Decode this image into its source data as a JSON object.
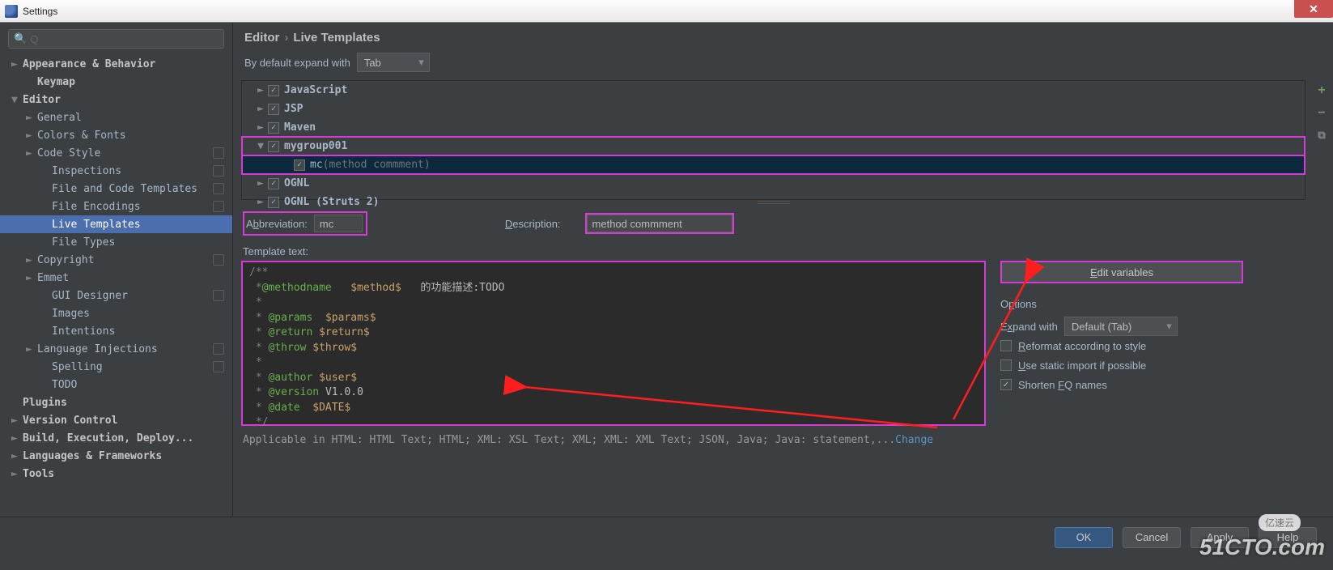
{
  "window": {
    "title": "Settings",
    "close_glyph": "✕"
  },
  "colors": {
    "highlight_pink": "#d63bd6",
    "selection_blue": "#4b6eaf",
    "row_selected": "#0d293e",
    "arrow_red": "#ff1e1e",
    "add_green": "#6e9b5f"
  },
  "sidebar": {
    "search_placeholder": "Q",
    "items": [
      {
        "label": "Appearance & Behavior",
        "bold": true,
        "chevron": "►"
      },
      {
        "label": "Keymap",
        "bold": true,
        "indent": 1
      },
      {
        "label": "Editor",
        "bold": true,
        "chevron": "▼"
      },
      {
        "label": "General",
        "chevron": "►",
        "indent": 1
      },
      {
        "label": "Colors & Fonts",
        "chevron": "►",
        "indent": 1
      },
      {
        "label": "Code Style",
        "chevron": "►",
        "indent": 1,
        "cfg": true
      },
      {
        "label": "Inspections",
        "indent": 2,
        "cfg": true
      },
      {
        "label": "File and Code Templates",
        "indent": 2,
        "cfg": true
      },
      {
        "label": "File Encodings",
        "indent": 2,
        "cfg": true
      },
      {
        "label": "Live Templates",
        "indent": 2,
        "selected": true
      },
      {
        "label": "File Types",
        "indent": 2
      },
      {
        "label": "Copyright",
        "chevron": "►",
        "indent": 1,
        "cfg": true
      },
      {
        "label": "Emmet",
        "chevron": "►",
        "indent": 1
      },
      {
        "label": "GUI Designer",
        "indent": 2,
        "cfg": true
      },
      {
        "label": "Images",
        "indent": 2
      },
      {
        "label": "Intentions",
        "indent": 2
      },
      {
        "label": "Language Injections",
        "chevron": "►",
        "indent": 1,
        "cfg": true
      },
      {
        "label": "Spelling",
        "indent": 2,
        "cfg": true
      },
      {
        "label": "TODO",
        "indent": 2
      },
      {
        "label": "Plugins",
        "bold": true
      },
      {
        "label": "Version Control",
        "bold": true,
        "chevron": "►"
      },
      {
        "label": "Build, Execution, Deploy...",
        "bold": true,
        "chevron": "►"
      },
      {
        "label": "Languages & Frameworks",
        "bold": true,
        "chevron": "►"
      },
      {
        "label": "Tools",
        "bold": true,
        "chevron": "►"
      }
    ]
  },
  "breadcrumb": {
    "a": "Editor",
    "b": "Live Templates"
  },
  "expand": {
    "label": "By default expand with",
    "value": "Tab"
  },
  "tool_icons": {
    "add": "+",
    "remove": "−",
    "copy": "⧉"
  },
  "groups": [
    {
      "label": "JavaScript",
      "arrow": "►",
      "checked": true
    },
    {
      "label": "JSP",
      "arrow": "►",
      "checked": true
    },
    {
      "label": "Maven",
      "arrow": "►",
      "checked": true
    },
    {
      "label": "mygroup001",
      "arrow": "▼",
      "checked": true,
      "pink": true
    },
    {
      "label": "mc",
      "hint": "(method commment)",
      "checked": true,
      "child": true,
      "selected": true,
      "pink": true
    },
    {
      "label": "OGNL",
      "arrow": "►",
      "checked": true
    },
    {
      "label": "OGNL (Struts 2)",
      "arrow": "►",
      "checked": true
    }
  ],
  "abbr": {
    "label_pre": "A",
    "label_ul": "b",
    "label_post": "breviation:",
    "value": "mc"
  },
  "desc": {
    "label_pre": "",
    "label_ul": "D",
    "label_post": "escription:",
    "value": "method commment"
  },
  "template_label_pre": "",
  "template_label_ul": "T",
  "template_label_post": "emplate text:",
  "template_lines": [
    {
      "t": "cm",
      "v": "/**"
    },
    {
      "t": "mix",
      "parts": [
        {
          "t": "cm",
          "v": " *"
        },
        {
          "t": "kw",
          "v": "@methodname"
        },
        {
          "t": "cm",
          "v": "   "
        },
        {
          "t": "var",
          "v": "$method$"
        },
        {
          "t": "cm",
          "v": "   "
        },
        {
          "t": "cn",
          "v": "的功能描述:TODO"
        }
      ]
    },
    {
      "t": "cm",
      "v": " *"
    },
    {
      "t": "mix",
      "parts": [
        {
          "t": "cm",
          "v": " * "
        },
        {
          "t": "kw",
          "v": "@params"
        },
        {
          "t": "cm",
          "v": "  "
        },
        {
          "t": "var",
          "v": "$params$"
        }
      ]
    },
    {
      "t": "mix",
      "parts": [
        {
          "t": "cm",
          "v": " * "
        },
        {
          "t": "kw",
          "v": "@return"
        },
        {
          "t": "cm",
          "v": " "
        },
        {
          "t": "var",
          "v": "$return$"
        }
      ]
    },
    {
      "t": "mix",
      "parts": [
        {
          "t": "cm",
          "v": " * "
        },
        {
          "t": "kw",
          "v": "@throw"
        },
        {
          "t": "cm",
          "v": " "
        },
        {
          "t": "var",
          "v": "$throw$"
        }
      ]
    },
    {
      "t": "cm",
      "v": " *"
    },
    {
      "t": "mix",
      "parts": [
        {
          "t": "cm",
          "v": " * "
        },
        {
          "t": "kw",
          "v": "@author"
        },
        {
          "t": "cm",
          "v": " "
        },
        {
          "t": "var",
          "v": "$user$"
        }
      ]
    },
    {
      "t": "mix",
      "parts": [
        {
          "t": "cm",
          "v": " * "
        },
        {
          "t": "kw",
          "v": "@version"
        },
        {
          "t": "cm",
          "v": " "
        },
        {
          "t": "cn",
          "v": "V1.0.0"
        }
      ]
    },
    {
      "t": "mix",
      "parts": [
        {
          "t": "cm",
          "v": " * "
        },
        {
          "t": "kw",
          "v": "@date"
        },
        {
          "t": "cm",
          "v": "  "
        },
        {
          "t": "var",
          "v": "$DATE$"
        }
      ]
    },
    {
      "t": "cm",
      "v": " */"
    }
  ],
  "applicable": {
    "text": "Applicable in HTML: HTML Text; HTML; XML: XSL Text; XML; XML: XML Text; JSON, Java; Java: statement,...",
    "link": "Change"
  },
  "edit_variables": {
    "pre": "",
    "ul": "E",
    "post": "dit variables"
  },
  "options_title": {
    "pre": "O",
    "ul": "p",
    "post": "tions"
  },
  "expand_with": {
    "label_pre": "E",
    "label_ul": "x",
    "label_post": "pand with",
    "value": "Default (Tab)"
  },
  "opts": [
    {
      "checked": false,
      "pre": "",
      "ul": "R",
      "post": "eformat according to style"
    },
    {
      "checked": false,
      "pre": "",
      "ul": "U",
      "post": "se static import if possible"
    },
    {
      "checked": true,
      "pre": "Shorten ",
      "ul": "F",
      "post": "Q names"
    }
  ],
  "footer": {
    "ok": "OK",
    "cancel": "Cancel",
    "apply": "Apply",
    "help": "Help"
  },
  "watermark": "51CTO.com",
  "watermark2": "亿速云"
}
